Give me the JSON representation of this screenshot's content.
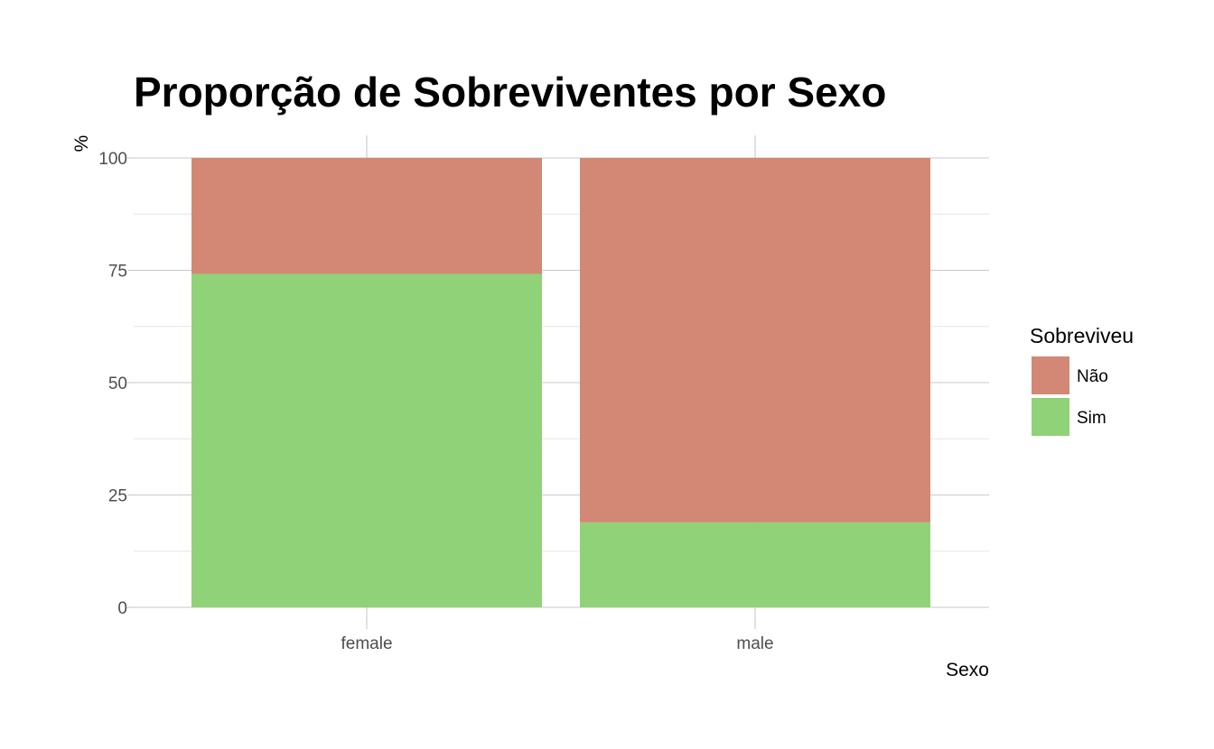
{
  "chart_data": {
    "type": "bar",
    "stacked": true,
    "title": "Proporção de Sobreviventes por Sexo",
    "xlabel": "Sexo",
    "ylabel": "%",
    "categories": [
      "female",
      "male"
    ],
    "ylim": [
      0,
      100
    ],
    "yticks": [
      0,
      25,
      50,
      75,
      100
    ],
    "series": [
      {
        "name": "Sim",
        "values": [
          74.2,
          18.9
        ],
        "color": "#90d277"
      },
      {
        "name": "Não",
        "values": [
          25.8,
          81.1
        ],
        "color": "#d28875"
      }
    ],
    "legend": {
      "title": "Sobreviveu",
      "position": "right",
      "items": [
        {
          "label": "Não",
          "color": "#d28875"
        },
        {
          "label": "Sim",
          "color": "#90d277"
        }
      ]
    },
    "grid": true,
    "grid_color": "#d9d9d9"
  }
}
